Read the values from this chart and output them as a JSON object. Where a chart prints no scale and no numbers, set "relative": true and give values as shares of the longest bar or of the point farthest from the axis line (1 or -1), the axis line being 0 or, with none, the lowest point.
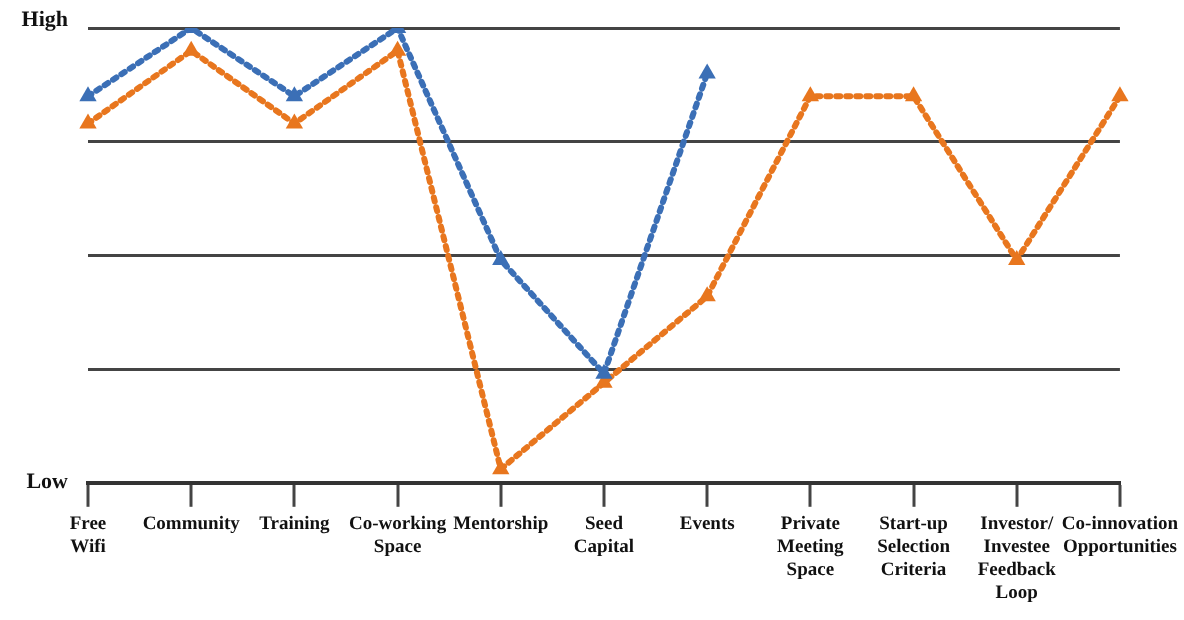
{
  "chart_data": {
    "type": "line",
    "categories": [
      "Free Wifi",
      "Community",
      "Training",
      "Co-working Space",
      "Mentorship",
      "Seed Capital",
      "Events",
      "Private Meeting Space",
      "Start-up Selection Criteria",
      "Investor/ Investee Feedback Loop",
      "Co-innovation Opportunities"
    ],
    "series": [
      {
        "color": "#3b6fb6",
        "values": [
          0.85,
          1,
          0.85,
          1,
          0.49,
          0.24,
          0.9,
          null,
          null,
          null,
          null
        ]
      },
      {
        "color": "#e8761e",
        "values": [
          0.79,
          0.95,
          0.79,
          0.95,
          0.03,
          0.22,
          0.41,
          0.85,
          0.85,
          0.49,
          0.85
        ]
      }
    ],
    "relative": true,
    "annotations": [
      "High",
      "Low"
    ],
    "grid": "y",
    "legend": false,
    "marker": "triangle",
    "line_style": "dotted"
  }
}
